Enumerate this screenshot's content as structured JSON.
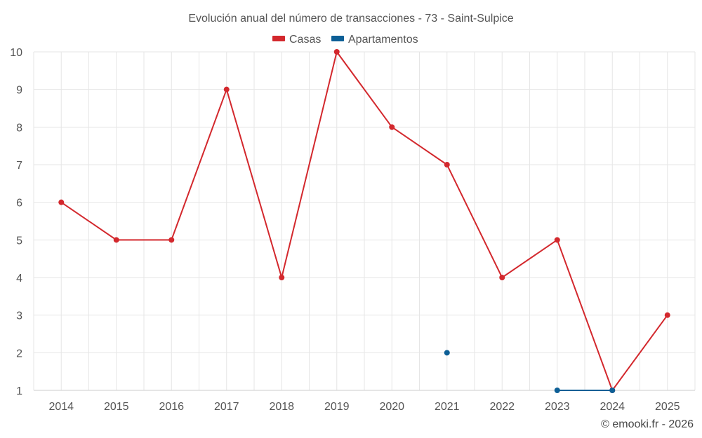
{
  "chart_data": {
    "type": "line",
    "title": "Evolución anual del número de transacciones - 73 - Saint-Sulpice",
    "categories": [
      "2014",
      "2015",
      "2016",
      "2017",
      "2018",
      "2019",
      "2020",
      "2021",
      "2022",
      "2023",
      "2024",
      "2025"
    ],
    "ylim": [
      1,
      10
    ],
    "yticks": [
      1,
      2,
      3,
      4,
      5,
      6,
      7,
      8,
      9,
      10
    ],
    "grid": true,
    "legend_position": "top-center",
    "series": [
      {
        "name": "Casas",
        "color": "#d3282d",
        "values": [
          6,
          5,
          5,
          9,
          4,
          10,
          8,
          7,
          4,
          5,
          1,
          3
        ]
      },
      {
        "name": "Apartamentos",
        "color": "#0d5f96",
        "values": [
          null,
          null,
          null,
          null,
          null,
          null,
          null,
          2,
          null,
          1,
          1,
          null
        ]
      }
    ],
    "credit": "© emooki.fr - 2026"
  }
}
